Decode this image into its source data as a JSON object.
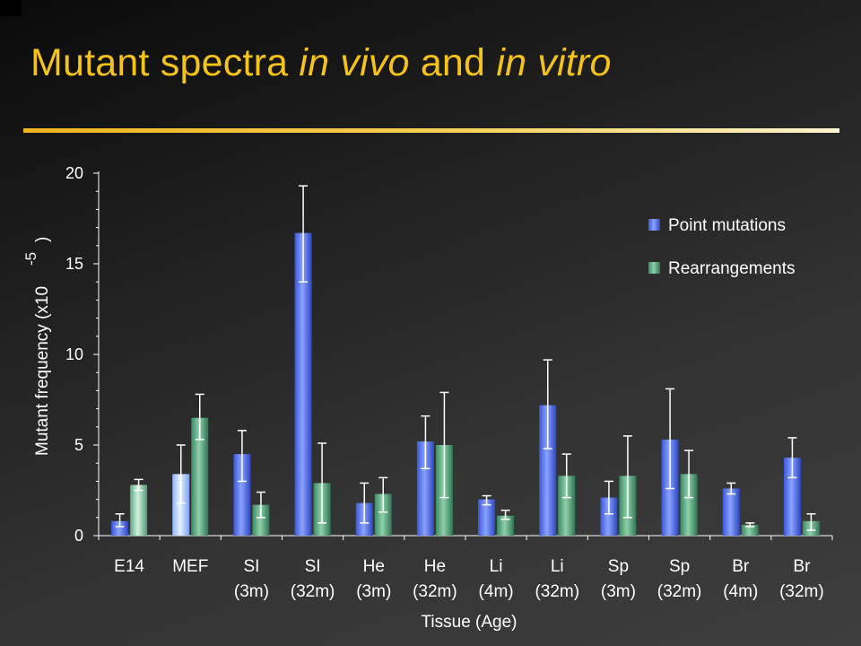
{
  "slide": {
    "title_part1": "Mutant spectra ",
    "title_part2": "in vivo",
    "title_part3": " and ",
    "title_part4": "in vitro",
    "accent_color": "#f5c21a"
  },
  "chart_data": {
    "type": "bar",
    "categories": [
      [
        "E14",
        ""
      ],
      [
        "MEF",
        ""
      ],
      [
        "SI",
        "(3m)"
      ],
      [
        "SI",
        "(32m)"
      ],
      [
        "He",
        "(3m)"
      ],
      [
        "He",
        "(32m)"
      ],
      [
        "Li",
        "(4m)"
      ],
      [
        "Li",
        "(32m)"
      ],
      [
        "Sp",
        "(3m)"
      ],
      [
        "Sp",
        "(32m)"
      ],
      [
        "Br",
        "(4m)"
      ],
      [
        "Br",
        "(32m)"
      ]
    ],
    "series": [
      {
        "name": "Point mutations",
        "color": "#4f6fe8",
        "values": [
          0.8,
          3.4,
          4.5,
          16.7,
          1.8,
          5.2,
          2.0,
          7.2,
          2.1,
          5.3,
          2.6,
          4.3
        ],
        "err_low": [
          0.5,
          1.8,
          3.0,
          14.0,
          0.7,
          3.7,
          1.7,
          4.8,
          1.2,
          2.6,
          2.3,
          3.2
        ],
        "err_high": [
          1.2,
          5.0,
          5.8,
          19.3,
          2.9,
          6.6,
          2.2,
          9.7,
          3.0,
          8.1,
          2.9,
          5.4
        ]
      },
      {
        "name": "Rearrangements",
        "color": "#4e9a72",
        "values": [
          2.8,
          6.5,
          1.7,
          2.9,
          2.3,
          5.0,
          1.1,
          3.3,
          3.3,
          3.4,
          0.6,
          0.8
        ],
        "err_low": [
          2.5,
          5.3,
          1.0,
          0.7,
          1.3,
          2.1,
          0.9,
          2.1,
          1.0,
          2.1,
          0.5,
          0.3
        ],
        "err_high": [
          3.1,
          7.8,
          2.4,
          5.1,
          3.2,
          7.9,
          1.4,
          4.5,
          5.5,
          4.7,
          0.7,
          1.2
        ]
      }
    ],
    "xlabel": "Tissue (Age)",
    "ylabel_main": "Mutant frequency (x10",
    "ylabel_exp": "-5",
    "ylabel_close": ")",
    "ylim": [
      0,
      20
    ],
    "yticks": [
      0,
      5,
      10,
      15,
      20
    ],
    "grid": false,
    "legend_position": "top-right"
  }
}
